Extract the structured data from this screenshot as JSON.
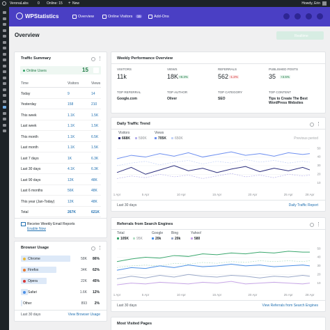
{
  "admin_bar": {
    "site": "VeronaLabs",
    "comments": "0",
    "online": "Online: 15",
    "new": "New",
    "user": "Howdy, Erin"
  },
  "header": {
    "logo": "WPStatistics",
    "nav": [
      {
        "label": "Overview"
      },
      {
        "label": "Online Visitors",
        "badge": "15"
      },
      {
        "label": "Add-Ons"
      }
    ]
  },
  "page": {
    "title": "Overview",
    "button": "Realtime"
  },
  "traffic_summary": {
    "title": "Traffic Summary",
    "online_label": "Online Users",
    "online_count": "15",
    "columns": [
      "Time",
      "Visitors",
      "Views"
    ],
    "rows": [
      [
        "Today",
        "9",
        "14"
      ],
      [
        "Yesterday",
        "158",
        "210"
      ],
      [
        "This week",
        "1.1K",
        "1.5K"
      ],
      [
        "Last week",
        "1.1K",
        "1.5K"
      ],
      [
        "This month",
        "1.1K",
        "6.5K"
      ],
      [
        "Last month",
        "1.1K",
        "1.5K"
      ],
      [
        "Last 7 days",
        "1K",
        "6.3K"
      ],
      [
        "Last 30 days",
        "4.1K",
        "6.3K"
      ],
      [
        "Last 90 days",
        "12K",
        "48K"
      ],
      [
        "Last 6 months",
        "56K",
        "48K"
      ],
      [
        "This year (Jan-Today)",
        "12K",
        "48K"
      ],
      [
        "Total",
        "267K",
        "621K"
      ]
    ]
  },
  "email": {
    "title": "Receive Weekly Email Reports",
    "link": "Enable Now"
  },
  "browser_usage": {
    "title": "Browser Usage",
    "rows": [
      {
        "name": "Chrome",
        "count": "58K",
        "percent": 86,
        "percent_label": "86%"
      },
      {
        "name": "Firefox",
        "count": "34K",
        "percent": 62,
        "percent_label": "62%"
      },
      {
        "name": "Opera",
        "count": "22K",
        "percent": 45,
        "percent_label": "45%"
      },
      {
        "name": "Safari",
        "count": "1.6K",
        "percent": 12,
        "percent_label": "12%"
      },
      {
        "name": "Other",
        "count": "893",
        "percent": 2,
        "percent_label": "2%"
      }
    ],
    "period": "Last 30 days",
    "link": "View Browser Usage"
  },
  "weekly": {
    "title": "Weekly Performance Overview",
    "metrics": [
      {
        "label": "VISITORS",
        "value": "11k"
      },
      {
        "label": "VIEWS",
        "value": "18K",
        "change": "+8.3%"
      },
      {
        "label": "REFERRALS",
        "value": "562",
        "change": "-1.2%"
      },
      {
        "label": "PUBLISHED POSTS",
        "value": "35",
        "change": "+3.5%"
      }
    ],
    "tops": [
      {
        "label": "TOP REFERRAL",
        "value": "Google.com"
      },
      {
        "label": "TOP AUTHOR",
        "value": "Oliver"
      },
      {
        "label": "TOP CATEGORY",
        "value": "SEO"
      },
      {
        "label": "TOP CONTENT",
        "value": "Tips to Create The Best WordPress Websites"
      }
    ]
  },
  "daily_trend": {
    "title": "Daily Traffic Trend",
    "type": "line",
    "previous_label": "Previous period",
    "period": "Last 30 days",
    "link": "Daily Traffic Report",
    "x": [
      1,
      3,
      5,
      7,
      9,
      11,
      13,
      15,
      17,
      19,
      21,
      23,
      25,
      27,
      28
    ],
    "xlim": [
      1,
      28
    ],
    "xticks": [
      {
        "value": 1,
        "label": "1 Apr"
      },
      {
        "value": 5,
        "label": "5 Apr"
      },
      {
        "value": 10,
        "label": "10 Apr"
      },
      {
        "value": 15,
        "label": "15 Apr"
      },
      {
        "value": 20,
        "label": "20 Apr"
      },
      {
        "value": 25,
        "label": "25 Apr"
      },
      {
        "value": 28,
        "label": "28 Apr"
      }
    ],
    "ylim": [
      0,
      55
    ],
    "yticks": [
      10,
      20,
      30,
      40,
      50
    ],
    "grid": true,
    "series": [
      {
        "name": "Visitors",
        "total": "668K",
        "previous_total": "590K",
        "color": "#2b2d7c",
        "previous_color": "#b9b4ec",
        "values": [
          22,
          28,
          20,
          25,
          30,
          24,
          27,
          22,
          26,
          29,
          23,
          27,
          24,
          28,
          25
        ],
        "previous_values": [
          15,
          18,
          16,
          20,
          17,
          19,
          15,
          18,
          21,
          17,
          19,
          16,
          20,
          18,
          19
        ]
      },
      {
        "name": "Views",
        "total": "705K",
        "previous_total": "650K",
        "color": "#6d8ff0",
        "previous_color": "#c4d3f7",
        "values": [
          38,
          42,
          40,
          44,
          41,
          45,
          40,
          43,
          46,
          42,
          44,
          41,
          45,
          43,
          44
        ],
        "previous_values": [
          30,
          33,
          35,
          31,
          34,
          36,
          32,
          35,
          33,
          37,
          34,
          36,
          33,
          35,
          34
        ]
      }
    ]
  },
  "referrals": {
    "title": "Referrals from Search Engines",
    "type": "line",
    "period": "Last 30 days",
    "link": "View Referrals from Search Engines",
    "x": [
      1,
      3,
      5,
      7,
      9,
      11,
      13,
      15,
      17,
      19,
      21,
      23,
      25,
      27,
      28
    ],
    "xlim": [
      1,
      28
    ],
    "xticks": [
      {
        "value": 1,
        "label": "1 Apr"
      },
      {
        "value": 5,
        "label": "5 Apr"
      },
      {
        "value": 10,
        "label": "10 Apr"
      },
      {
        "value": 15,
        "label": "15 Apr"
      },
      {
        "value": 20,
        "label": "20 Apr"
      },
      {
        "value": 25,
        "label": "25 Apr"
      },
      {
        "value": 28,
        "label": "28 Apr"
      }
    ],
    "ylim": [
      0,
      55
    ],
    "yticks": [
      10,
      20,
      30,
      40,
      50
    ],
    "grid": true,
    "series": [
      {
        "name": "Total",
        "total": "105K",
        "previous_total": "95K",
        "color": "#3aa76d",
        "previous_color": "#b5dfc6",
        "values": [
          35,
          38,
          40,
          39,
          42,
          41,
          44,
          43,
          45,
          44,
          46,
          45,
          47,
          46,
          46
        ],
        "previous_values": [
          28,
          30,
          31,
          30,
          33,
          32,
          34,
          33,
          35,
          34,
          36,
          35,
          36,
          35,
          36
        ]
      },
      {
        "name": "Google",
        "total": "20k",
        "color": "#4a8fe7",
        "values": [
          25,
          28,
          27,
          30,
          28,
          31,
          29,
          30,
          32,
          30,
          31,
          29,
          30,
          31,
          30
        ]
      },
      {
        "name": "Bing",
        "total": "20k",
        "color": "#9aa8c8",
        "values": [
          15,
          18,
          16,
          19,
          17,
          20,
          18,
          17,
          19,
          18,
          16,
          18,
          17,
          19,
          18
        ]
      },
      {
        "name": "Yahoo!",
        "total": "580",
        "color": "#c9a7e8",
        "values": [
          8,
          10,
          9,
          11,
          10,
          9,
          11,
          10,
          12,
          9,
          10,
          11,
          10,
          9,
          10
        ]
      }
    ]
  },
  "most_visited": {
    "title": "Most Visited Pages"
  }
}
